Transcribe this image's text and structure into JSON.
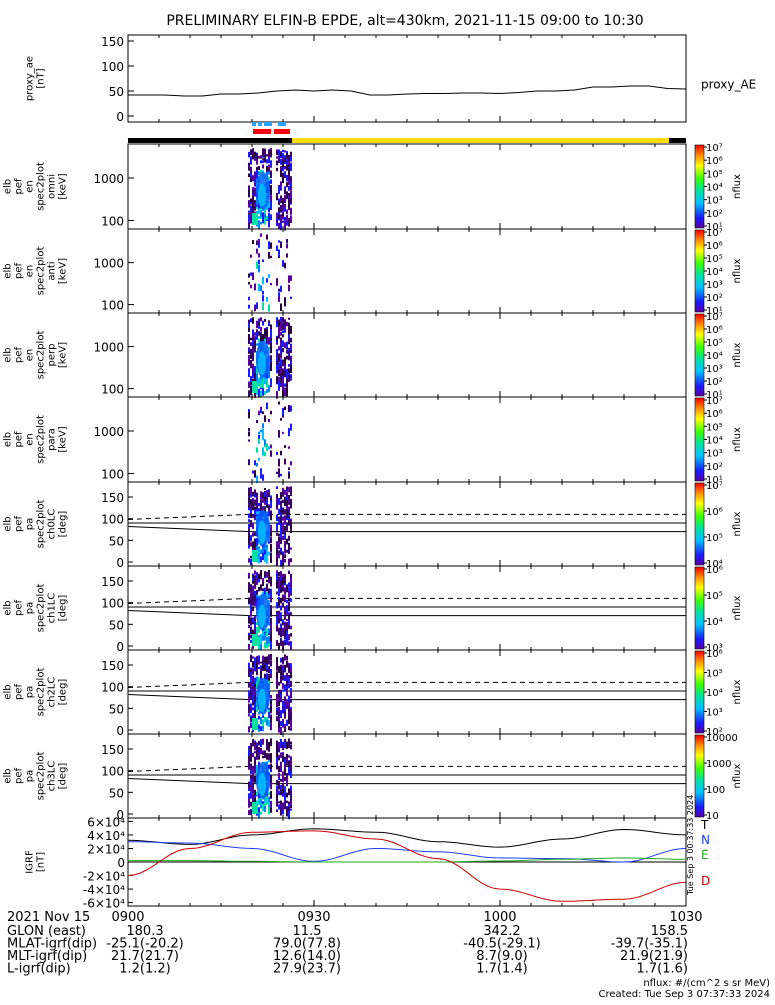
{
  "title": "PRELIMINARY ELFIN-B EPDE, alt=430km, 2021-11-15 09:00 to 10:30",
  "colors": {
    "axis": "#000000",
    "ae_line": "#000000",
    "bar_night": "#000000",
    "bar_day": "#ffdd00",
    "marker_blue": "#2aa0ff",
    "marker_red": "#ff0000",
    "grf_T": "#000000",
    "grf_N": "#1f3fff",
    "grf_E": "#22aa22",
    "grf_D": "#cc0000"
  },
  "chart_data": [
    {
      "id": "proxy_ae",
      "type": "line",
      "ylabel": [
        "proxy_ae",
        "[nT]"
      ],
      "legend_label": "proxy_AE",
      "ylim": [
        0,
        150
      ],
      "yticks": [
        "0",
        "50",
        "100",
        "150"
      ],
      "x": [
        0,
        3,
        6,
        9,
        12,
        15,
        18,
        21,
        24,
        27,
        30,
        33,
        36,
        39,
        42,
        45,
        48,
        51,
        54,
        57,
        60,
        63,
        66,
        69,
        72,
        75,
        78,
        81,
        84,
        87,
        90
      ],
      "values": [
        42,
        42,
        42,
        40,
        40,
        44,
        44,
        46,
        50,
        52,
        50,
        52,
        50,
        42,
        42,
        44,
        45,
        45,
        46,
        46,
        45,
        47,
        50,
        50,
        52,
        58,
        58,
        60,
        60,
        55,
        54
      ]
    },
    {
      "id": "omni",
      "type": "heatmap",
      "ylabel": [
        "elb",
        "pef",
        "en",
        "spec2plot",
        "omni",
        "[keV]"
      ],
      "yticks": [
        "100",
        "1000"
      ],
      "colorbar_label": "nflux",
      "colorbar_ticks": [
        "10¹",
        "10²",
        "10³",
        "10⁴",
        "10⁵",
        "10⁶",
        "10⁷"
      ]
    },
    {
      "id": "anti",
      "type": "heatmap",
      "ylabel": [
        "elb",
        "pef",
        "en",
        "spec2plot",
        "anti",
        "[keV]"
      ],
      "yticks": [
        "100",
        "1000"
      ],
      "colorbar_label": "nflux",
      "colorbar_ticks": [
        "10¹",
        "10²",
        "10³",
        "10⁴",
        "10⁵",
        "10⁶",
        "10⁷"
      ]
    },
    {
      "id": "perp",
      "type": "heatmap",
      "ylabel": [
        "elb",
        "pef",
        "en",
        "spec2plot",
        "perp",
        "[keV]"
      ],
      "yticks": [
        "100",
        "1000"
      ],
      "colorbar_label": "nflux",
      "colorbar_ticks": [
        "10¹",
        "10²",
        "10³",
        "10⁴",
        "10⁵",
        "10⁶",
        "10⁷"
      ]
    },
    {
      "id": "para",
      "type": "heatmap",
      "ylabel": [
        "elb",
        "pef",
        "en",
        "spec2plot",
        "para",
        "[keV]"
      ],
      "yticks": [
        "100",
        "1000"
      ],
      "colorbar_label": "nflux",
      "colorbar_ticks": [
        "10¹",
        "10²",
        "10³",
        "10⁴",
        "10⁵",
        "10⁶",
        "10⁷"
      ]
    },
    {
      "id": "ch0LC",
      "type": "heatmap",
      "ylabel": [
        "elb",
        "pef",
        "pa",
        "spec2plot",
        "ch0LC",
        "[deg]"
      ],
      "ylim": [
        0,
        180
      ],
      "yticks": [
        "0",
        "50",
        "100",
        "150"
      ],
      "colorbar_label": "nflux",
      "colorbar_ticks": [
        "10⁴",
        "10⁵",
        "10⁶",
        "10⁷"
      ]
    },
    {
      "id": "ch1LC",
      "type": "heatmap",
      "ylabel": [
        "elb",
        "pef",
        "pa",
        "spec2plot",
        "ch1LC",
        "[deg]"
      ],
      "ylim": [
        0,
        180
      ],
      "yticks": [
        "0",
        "50",
        "100",
        "150"
      ],
      "colorbar_label": "nflux",
      "colorbar_ticks": [
        "10³",
        "10⁴",
        "10⁵",
        "10⁶"
      ]
    },
    {
      "id": "ch2LC",
      "type": "heatmap",
      "ylabel": [
        "elb",
        "pef",
        "pa",
        "spec2plot",
        "ch2LC",
        "[deg]"
      ],
      "ylim": [
        0,
        180
      ],
      "yticks": [
        "0",
        "50",
        "100",
        "150"
      ],
      "colorbar_label": "nflux",
      "colorbar_ticks": [
        "10²",
        "10³",
        "10⁴",
        "10⁵",
        "10⁶"
      ]
    },
    {
      "id": "ch3LC",
      "type": "heatmap",
      "ylabel": [
        "elb",
        "pef",
        "pa",
        "spec2plot",
        "ch3LC",
        "[deg]"
      ],
      "ylim": [
        0,
        180
      ],
      "yticks": [
        "0",
        "50",
        "100",
        "150"
      ],
      "colorbar_label": "nflux",
      "colorbar_ticks": [
        "10",
        "100",
        "1000",
        "10000"
      ]
    },
    {
      "id": "igrf",
      "type": "line",
      "ylabel": [
        "IGRF",
        "[nT]"
      ],
      "ylim": [
        -65000,
        65000
      ],
      "yticks": [
        "-6×10⁴",
        "-4×10⁴",
        "-2×10⁴",
        "0",
        "2×10⁴",
        "4×10⁴",
        "6×10⁴"
      ],
      "series": [
        {
          "name": "T",
          "color": "#000000",
          "x": [
            0,
            10,
            20,
            30,
            40,
            50,
            60,
            70,
            80,
            90
          ],
          "values": [
            32000,
            26000,
            40000,
            49000,
            44000,
            30000,
            22000,
            34000,
            48000,
            40000
          ]
        },
        {
          "name": "N",
          "color": "#1f3fff",
          "x": [
            0,
            10,
            20,
            30,
            40,
            50,
            60,
            70,
            80,
            90
          ],
          "values": [
            30000,
            28000,
            20000,
            1000,
            20000,
            15000,
            6000,
            5000,
            0,
            20000
          ]
        },
        {
          "name": "E",
          "color": "#22aa22",
          "x": [
            0,
            10,
            20,
            30,
            40,
            50,
            60,
            70,
            80,
            90
          ],
          "values": [
            2000,
            2000,
            1000,
            0,
            0,
            0,
            1500,
            4000,
            6000,
            4000
          ]
        },
        {
          "name": "D",
          "color": "#cc0000",
          "x": [
            0,
            10,
            20,
            30,
            40,
            50,
            60,
            70,
            80,
            90
          ],
          "values": [
            -20000,
            20000,
            44000,
            46000,
            34000,
            5000,
            -40000,
            -58000,
            -55000,
            -30000
          ]
        }
      ]
    }
  ],
  "time_axis": {
    "tick_labels": [
      "0900",
      "0930",
      "1000",
      "1030"
    ],
    "tick_minutes": [
      0,
      30,
      60,
      90
    ],
    "total_minutes": 90
  },
  "ephemeris": {
    "date_label": "2021 Nov 15",
    "rows": [
      {
        "label": "GLON (east)",
        "values": [
          "180.3",
          "11.5",
          "342.2",
          "158.5"
        ]
      },
      {
        "label": "MLAT-igrf(dip)",
        "values": [
          "-25.1(-20.2)",
          "79.0(77.8)",
          "-40.5(-29.1)",
          "-39.7(-35.1)"
        ]
      },
      {
        "label": "MLT-igrf(dip)",
        "values": [
          "21.7(21.7)",
          "12.6(14.0)",
          "8.7(9.0)",
          "21.9(21.9)"
        ]
      },
      {
        "label": "L-igrf(dip)",
        "values": [
          "1.2(1.2)",
          "27.9(23.7)",
          "1.7(1.4)",
          "1.7(1.6)"
        ]
      }
    ]
  },
  "footer": {
    "units": "nflux: #/(cm^2 s sr MeV)",
    "created": "Created: Tue Sep  3 07:37:33 2024",
    "vertical_stamp": "Tue Sep  3 00:37:33 2024"
  }
}
